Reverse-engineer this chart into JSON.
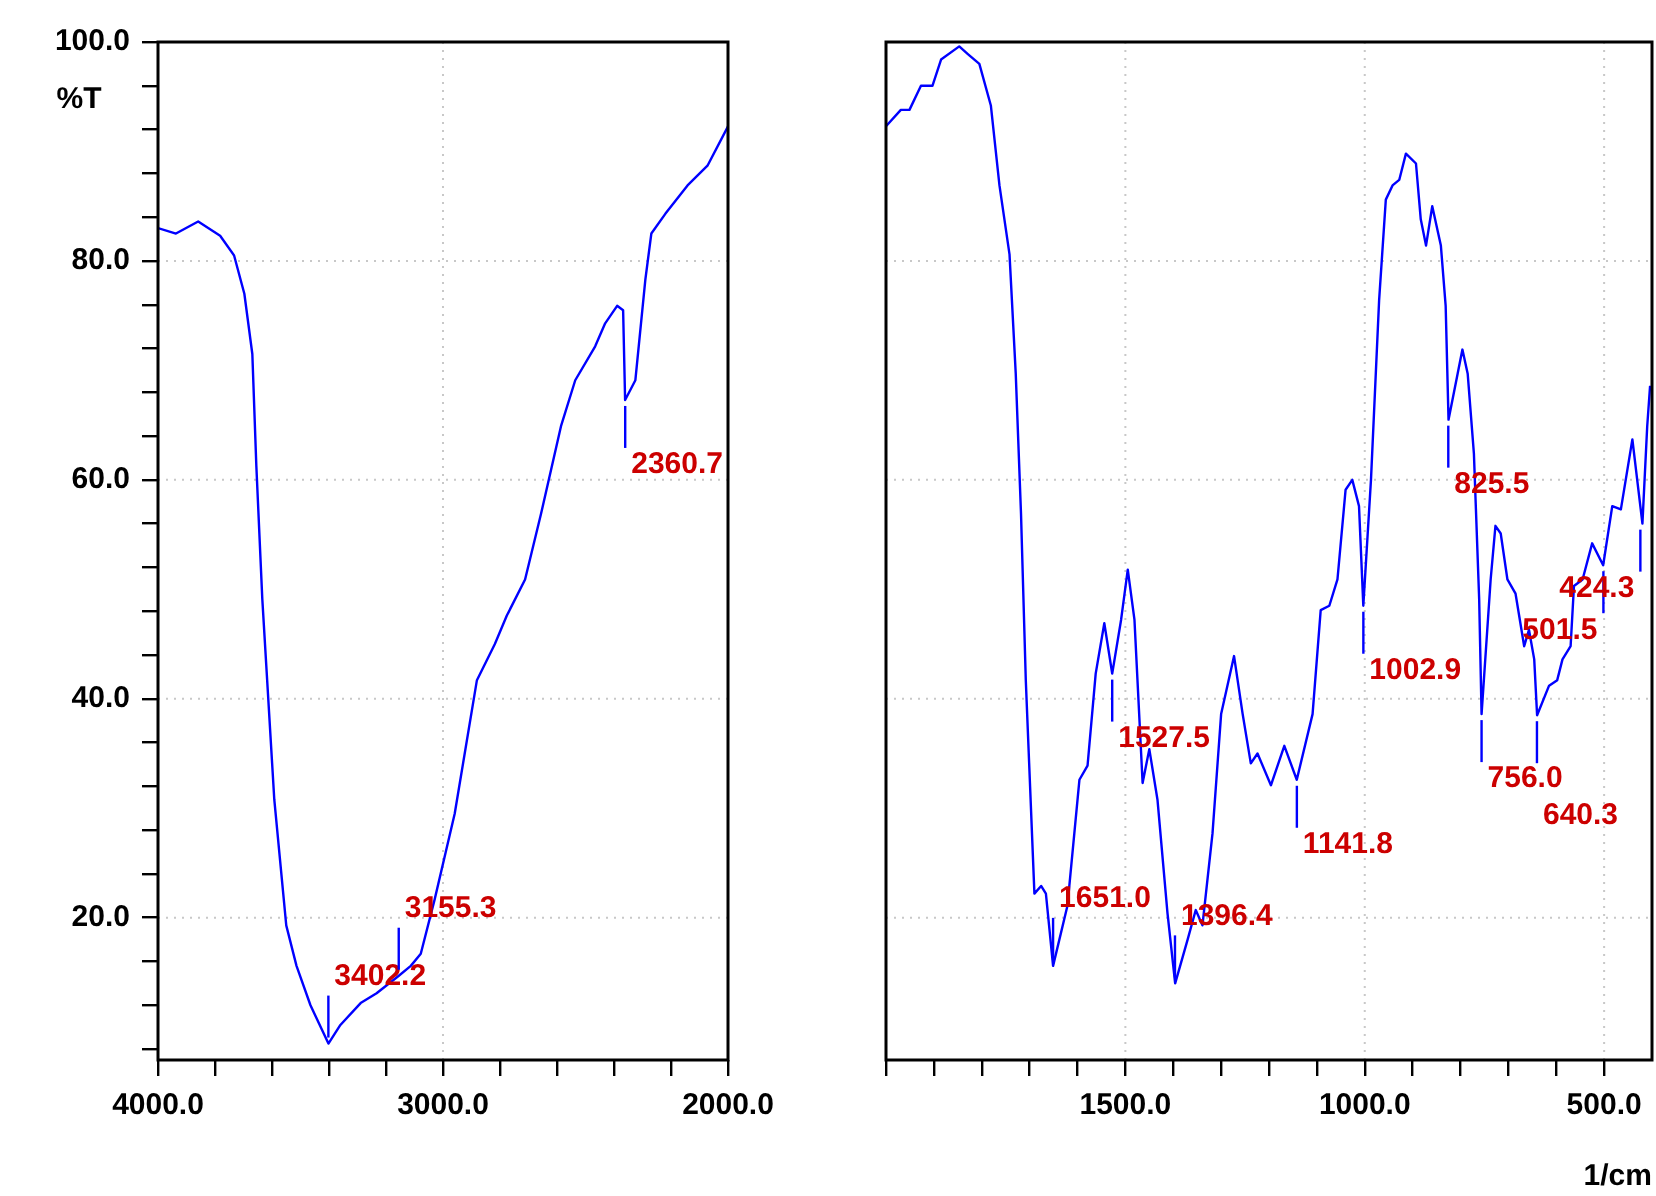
{
  "chart_data": [
    {
      "type": "line",
      "ylabel": "%T",
      "series": [
        {
          "color": "#0000ff",
          "x": [
            4000,
            3937,
            3859,
            3782,
            3733,
            3697,
            3669,
            3655,
            3634,
            3620,
            3592,
            3550,
            3514,
            3465,
            3402,
            3360,
            3289,
            3233,
            3155,
            3113,
            3078,
            3029,
            2959,
            2881,
            2818,
            2776,
            2712,
            2656,
            2586,
            2536,
            2466,
            2431,
            2389,
            2368,
            2361,
            2325,
            2290,
            2269,
            2220,
            2142,
            2072,
            2000
          ],
          "values": [
            83.0,
            82.5,
            83.6,
            82.3,
            80.5,
            77.0,
            71.5,
            61.3,
            49.1,
            43.0,
            30.8,
            19.3,
            15.6,
            12.0,
            8.5,
            10.2,
            12.2,
            13.1,
            14.7,
            15.6,
            16.7,
            21.7,
            29.5,
            41.7,
            45.0,
            47.6,
            50.9,
            56.9,
            64.9,
            69.1,
            72.2,
            74.3,
            75.9,
            75.5,
            67.3,
            69.1,
            78.3,
            82.5,
            84.3,
            86.9,
            88.7,
            92.3
          ]
        }
      ],
      "xlim": [
        4000,
        2000
      ],
      "xticks": [
        {
          "value": 4000,
          "label": "4000.0"
        },
        {
          "value": 3800,
          "label": null
        },
        {
          "value": 3600,
          "label": null
        },
        {
          "value": 3400,
          "label": null
        },
        {
          "value": 3200,
          "label": null
        },
        {
          "value": 3000,
          "label": "3000.0"
        },
        {
          "value": 2800,
          "label": null
        },
        {
          "value": 2600,
          "label": null
        },
        {
          "value": 2400,
          "label": null
        },
        {
          "value": 2200,
          "label": null
        },
        {
          "value": 2000,
          "label": "2000.0"
        }
      ],
      "ylim": [
        7,
        100
      ],
      "yticks": [
        {
          "value": 8,
          "label": null
        },
        {
          "value": 12,
          "label": null
        },
        {
          "value": 16,
          "label": null
        },
        {
          "value": 20,
          "label": "20.0"
        },
        {
          "value": 24,
          "label": null
        },
        {
          "value": 28,
          "label": null
        },
        {
          "value": 32,
          "label": null
        },
        {
          "value": 36,
          "label": null
        },
        {
          "value": 40,
          "label": "40.0"
        },
        {
          "value": 44,
          "label": null
        },
        {
          "value": 48,
          "label": null
        },
        {
          "value": 52,
          "label": null
        },
        {
          "value": 56,
          "label": null
        },
        {
          "value": 60,
          "label": "60.0"
        },
        {
          "value": 64,
          "label": null
        },
        {
          "value": 68,
          "label": null
        },
        {
          "value": 72,
          "label": null
        },
        {
          "value": 76,
          "label": null
        },
        {
          "value": 80,
          "label": "80.0"
        },
        {
          "value": 84,
          "label": null
        },
        {
          "value": 88,
          "label": null
        },
        {
          "value": 92,
          "label": null
        },
        {
          "value": 96,
          "label": null
        },
        {
          "value": 100,
          "label": "100.0"
        }
      ],
      "annotations": [
        {
          "text": "3402.2",
          "x": 3402.2,
          "y": 8.5
        },
        {
          "text": "3155.3",
          "x": 3155.3,
          "y": 14.7
        },
        {
          "text": "2360.7",
          "x": 2360.7,
          "y": 67.3
        }
      ],
      "grid": true,
      "legend": false,
      "marker": "none",
      "line_style": "solid"
    },
    {
      "type": "line",
      "xlabel": "1/cm",
      "series": [
        {
          "color": "#0000ff",
          "x": [
            2000,
            1969,
            1951,
            1927,
            1903,
            1885,
            1847,
            1829,
            1805,
            1781,
            1763,
            1742,
            1729,
            1718,
            1708,
            1690,
            1676,
            1666,
            1651,
            1621,
            1596,
            1579,
            1562,
            1544,
            1527.5,
            1509,
            1495,
            1481,
            1464,
            1450,
            1433,
            1412,
            1396,
            1370,
            1353,
            1339,
            1318,
            1300,
            1273,
            1255,
            1238,
            1224,
            1196,
            1168,
            1142,
            1109,
            1092,
            1074,
            1057,
            1040,
            1026,
            1012,
            1003,
            987,
            970,
            956,
            942,
            928,
            914,
            893,
            883,
            872,
            859,
            841,
            831,
            825,
            806,
            796,
            785,
            772,
            761,
            756,
            737,
            727,
            716,
            702,
            685,
            667,
            657,
            646,
            640,
            615,
            598,
            587,
            570,
            563,
            545,
            525,
            502,
            483,
            465,
            441,
            420,
            410,
            404
          ],
          "values": [
            92.3,
            93.8,
            93.8,
            96.0,
            96.0,
            98.4,
            99.6,
            98.9,
            98.0,
            94.2,
            86.9,
            80.6,
            69.7,
            56.9,
            41.7,
            22.2,
            22.9,
            22.2,
            15.6,
            21.1,
            32.6,
            33.9,
            42.3,
            46.9,
            42.3,
            47.2,
            51.8,
            47.2,
            32.3,
            35.4,
            30.8,
            20.4,
            14.0,
            18.0,
            20.7,
            19.3,
            27.7,
            38.6,
            43.9,
            38.6,
            34.1,
            35.0,
            32.1,
            35.7,
            32.6,
            38.6,
            48.1,
            48.5,
            50.9,
            59.1,
            60.0,
            57.6,
            48.5,
            60.0,
            76.4,
            85.6,
            86.9,
            87.4,
            89.8,
            88.9,
            83.8,
            81.4,
            85.0,
            81.4,
            75.9,
            65.5,
            69.7,
            71.9,
            69.7,
            62.4,
            49.1,
            38.6,
            50.9,
            55.8,
            55.1,
            50.9,
            49.6,
            44.8,
            46.3,
            43.6,
            38.5,
            41.2,
            41.7,
            43.6,
            44.8,
            50.3,
            50.9,
            54.2,
            52.2,
            57.6,
            57.3,
            63.7,
            56.0,
            64.9,
            68.6
          ]
        }
      ],
      "xlim": [
        2000,
        400
      ],
      "xticks": [
        {
          "value": 2000,
          "label": null
        },
        {
          "value": 1900,
          "label": null
        },
        {
          "value": 1800,
          "label": null
        },
        {
          "value": 1700,
          "label": null
        },
        {
          "value": 1600,
          "label": null
        },
        {
          "value": 1500,
          "label": "1500.0"
        },
        {
          "value": 1400,
          "label": null
        },
        {
          "value": 1300,
          "label": null
        },
        {
          "value": 1200,
          "label": null
        },
        {
          "value": 1100,
          "label": null
        },
        {
          "value": 1000,
          "label": "1000.0"
        },
        {
          "value": 900,
          "label": null
        },
        {
          "value": 800,
          "label": null
        },
        {
          "value": 700,
          "label": null
        },
        {
          "value": 600,
          "label": null
        },
        {
          "value": 500,
          "label": "500.0"
        }
      ],
      "ylim": [
        7,
        100
      ],
      "tick_labels": "x",
      "annotations": [
        {
          "text": "1651.0",
          "x": 1651.0,
          "y": 15.6
        },
        {
          "text": "1527.5",
          "x": 1527.5,
          "y": 42.3
        },
        {
          "text": "1396.4",
          "x": 1396.4,
          "y": 14.0
        },
        {
          "text": "1141.8",
          "x": 1141.8,
          "y": 32.6
        },
        {
          "text": "1002.9",
          "x": 1002.9,
          "y": 48.5
        },
        {
          "text": "825.5",
          "x": 825.5,
          "y": 65.5
        },
        {
          "text": "756.0",
          "x": 756.0,
          "y": 38.6
        },
        {
          "text": "640.3",
          "x": 640.3,
          "y": 38.5
        },
        {
          "text": "501.5",
          "x": 501.5,
          "y": 52.2
        },
        {
          "text": "424.3",
          "x": 424.3,
          "y": 56.0
        }
      ],
      "grid": true,
      "legend": false,
      "marker": "none",
      "line_style": "solid"
    }
  ]
}
